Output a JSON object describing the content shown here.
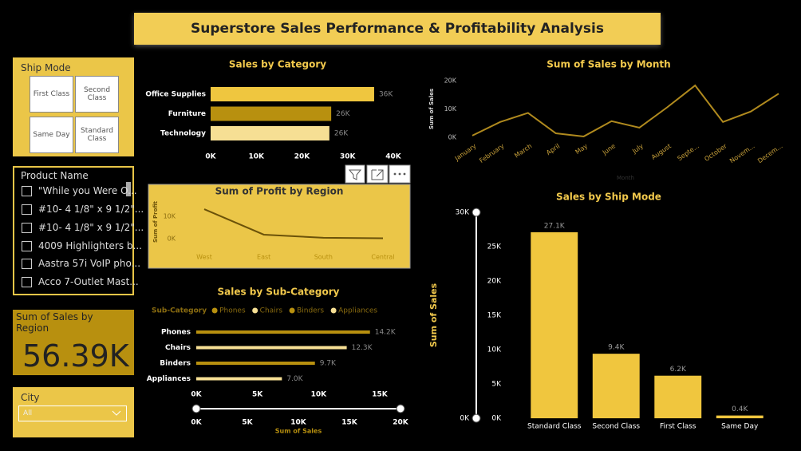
{
  "header": {
    "title": "Superstore Sales Performance & Profitability Analysis"
  },
  "ship_mode_slicer": {
    "title": "Ship Mode",
    "options": [
      "First Class",
      "Second Class",
      "Same Day",
      "Standard Class"
    ]
  },
  "product_slicer": {
    "title": "Product Name",
    "items": [
      "\"While you Were O...",
      "#10- 4 1/8\" x 9 1/2\"...",
      "#10- 4 1/8\" x 9 1/2\"...",
      "4009 Highlighters b...",
      "Aastra 57i VoIP pho...",
      "Acco 7-Outlet Mast..."
    ]
  },
  "card": {
    "title": "Sum of Sales by Region",
    "value": "56.39K"
  },
  "city_slicer": {
    "title": "City",
    "selected": "All"
  },
  "chart_data": [
    {
      "type": "hbar",
      "title": "Sales by Category",
      "categories": [
        "Office Supplies",
        "Furniture",
        "Technology"
      ],
      "values": [
        35800,
        26400,
        26000
      ],
      "value_labels": [
        "36K",
        "26K",
        "26K"
      ],
      "colors": [
        "#EFC63F",
        "#B8900F",
        "#F6DF94"
      ],
      "xlim": [
        0,
        40000
      ],
      "xticks": [
        {
          "value": 0,
          "label": "0K"
        },
        {
          "value": 10000,
          "label": "10K"
        },
        {
          "value": 20000,
          "label": "20K"
        },
        {
          "value": 30000,
          "label": "30K"
        },
        {
          "value": 40000,
          "label": "40K"
        }
      ]
    },
    {
      "type": "line",
      "title": "Sum of Sales by Month",
      "x_label": "Month",
      "y_label": "Sum of Sales",
      "categories": [
        "January",
        "February",
        "March",
        "April",
        "May",
        "June",
        "July",
        "August",
        "Septe...",
        "October",
        "Novem...",
        "Decem..."
      ],
      "values": [
        600,
        5400,
        8600,
        1400,
        300,
        5700,
        3400,
        10600,
        18300,
        5400,
        9100,
        15400
      ],
      "color": "#B08A1E",
      "ylim": [
        0,
        20000
      ],
      "yticks": [
        {
          "value": 0,
          "label": "0K"
        },
        {
          "value": 10000,
          "label": "10K"
        },
        {
          "value": 20000,
          "label": "20K"
        }
      ]
    },
    {
      "type": "line",
      "title": "Sum of Profit by Region",
      "y_label": "Sum of Profit",
      "categories": [
        "West",
        "East",
        "South",
        "Central"
      ],
      "values": [
        13200,
        1800,
        400,
        200
      ],
      "color": "#6B5209",
      "ylim": [
        0,
        15000
      ],
      "yticks": [
        {
          "value": 0,
          "label": "0K"
        },
        {
          "value": 10000,
          "label": "10K"
        }
      ]
    },
    {
      "type": "hbar",
      "title": "Sales by Sub-Category",
      "legend_title": "Sub-Category",
      "x_label": "Sum of Sales",
      "categories": [
        "Phones",
        "Chairs",
        "Binders",
        "Appliances"
      ],
      "values": [
        14200,
        12300,
        9700,
        7000
      ],
      "value_labels": [
        "14.2K",
        "12.3K",
        "9.7K",
        "7.0K"
      ],
      "colors": [
        "#B8900F",
        "#F6DF94",
        "#B8900F",
        "#F6DF94"
      ],
      "xlim": [
        0,
        15000
      ],
      "xticks": [
        {
          "value": 0,
          "label": "0K"
        },
        {
          "value": 5000,
          "label": "5K"
        },
        {
          "value": 10000,
          "label": "10K"
        },
        {
          "value": 15000,
          "label": "15K"
        }
      ],
      "zoom_xlim": [
        0,
        20000
      ],
      "zoom_xticks": [
        {
          "value": 0,
          "label": "0K"
        },
        {
          "value": 5000,
          "label": "5K"
        },
        {
          "value": 10000,
          "label": "10K"
        },
        {
          "value": 15000,
          "label": "15K"
        },
        {
          "value": 20000,
          "label": "20K"
        }
      ]
    },
    {
      "type": "bar",
      "title": "Sales by Ship Mode",
      "y_label": "Sum of Sales",
      "categories": [
        "Standard Class",
        "Second Class",
        "First Class",
        "Same Day"
      ],
      "values": [
        27100,
        9400,
        6200,
        400
      ],
      "value_labels": [
        "27.1K",
        "9.4K",
        "6.2K",
        "0.4K"
      ],
      "color": "#F0C63E",
      "ylim": [
        0,
        30000
      ],
      "yticks": [
        {
          "value": 0,
          "label": "0K"
        },
        {
          "value": 5000,
          "label": "5K"
        },
        {
          "value": 10000,
          "label": "10K"
        },
        {
          "value": 15000,
          "label": "15K"
        },
        {
          "value": 20000,
          "label": "20K"
        },
        {
          "value": 25000,
          "label": "25K"
        }
      ],
      "zoom_yticks": [
        {
          "value": 0,
          "label": "0K"
        },
        {
          "value": 30000,
          "label": "30K"
        }
      ]
    }
  ]
}
